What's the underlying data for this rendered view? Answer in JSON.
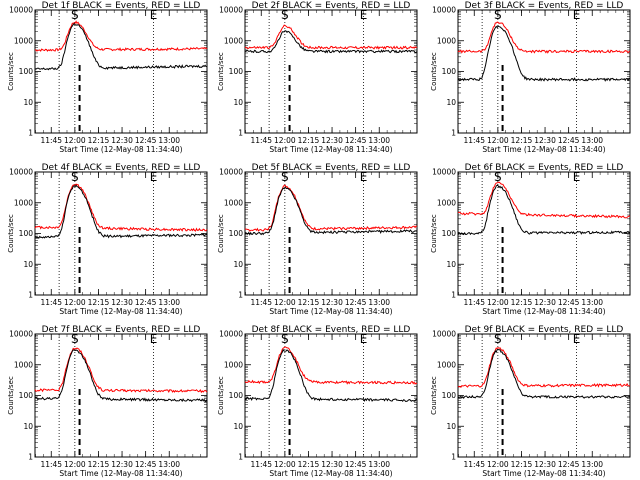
{
  "chart_data": [
    {
      "type": "line",
      "title": "Det 1f BLACK = Events, RED = LLD",
      "xlabel": "Start Time (12-May-08 11:34:40)",
      "ylabel": "Counts/sec",
      "yscale": "log",
      "ylim": [
        1,
        10000
      ],
      "xlim": [
        "11:34:40",
        "13:24"
      ],
      "x_tick_labels": [
        "11:45",
        "12:00",
        "12:15",
        "12:30",
        "12:45",
        "13:00"
      ],
      "y_tick_labels": [
        "1",
        "10",
        "100",
        "1000",
        "10000"
      ],
      "markers": [
        {
          "label": "S",
          "time": "12:00"
        },
        {
          "label": "E",
          "time": "12:50"
        }
      ],
      "dotted_times": [
        "11:50",
        "12:00",
        "12:50"
      ],
      "dashed_times": [
        "12:03"
      ],
      "peak_time": "12:00",
      "series": [
        {
          "color": "#ff0000",
          "baseline": 500,
          "peak": 4000,
          "end": 550
        },
        {
          "color": "#000000",
          "baseline": 120,
          "peak": 3500,
          "end": 150
        }
      ]
    },
    {
      "type": "line",
      "title": "Det 2f BLACK = Events, RED = LLD",
      "xlabel": "Start Time (12-May-08 11:34:40)",
      "ylabel": "Counts/sec",
      "yscale": "log",
      "ylim": [
        1,
        10000
      ],
      "xlim": [
        "11:34:40",
        "13:24"
      ],
      "x_tick_labels": [
        "11:45",
        "12:00",
        "12:15",
        "12:30",
        "12:45",
        "13:00"
      ],
      "y_tick_labels": [
        "1",
        "10",
        "100",
        "1000",
        "10000"
      ],
      "markers": [
        {
          "label": "S",
          "time": "12:00"
        },
        {
          "label": "E",
          "time": "12:50"
        }
      ],
      "dotted_times": [
        "11:50",
        "12:00",
        "12:50"
      ],
      "dashed_times": [
        "12:03"
      ],
      "peak_time": "12:00",
      "series": [
        {
          "color": "#ff0000",
          "baseline": 600,
          "peak": 3000,
          "end": 600
        },
        {
          "color": "#000000",
          "baseline": 450,
          "peak": 2000,
          "end": 450
        }
      ]
    },
    {
      "type": "line",
      "title": "Det 3f BLACK = Events, RED = LLD",
      "xlabel": "Start Time (12-May-08 11:34:40)",
      "ylabel": "Counts/sec",
      "yscale": "log",
      "ylim": [
        1,
        10000
      ],
      "xlim": [
        "11:34:40",
        "13:24"
      ],
      "x_tick_labels": [
        "11:45",
        "12:00",
        "12:15",
        "12:30",
        "12:45",
        "13:00"
      ],
      "y_tick_labels": [
        "1",
        "10",
        "100",
        "1000",
        "10000"
      ],
      "markers": [
        {
          "label": "S",
          "time": "12:00"
        },
        {
          "label": "E",
          "time": "12:50"
        }
      ],
      "dotted_times": [
        "11:50",
        "12:00",
        "12:50"
      ],
      "dashed_times": [
        "12:03"
      ],
      "peak_time": "12:00",
      "series": [
        {
          "color": "#ff0000",
          "baseline": 450,
          "peak": 4000,
          "end": 450
        },
        {
          "color": "#000000",
          "baseline": 55,
          "peak": 3000,
          "end": 55
        }
      ]
    },
    {
      "type": "line",
      "title": "Det 4f BLACK = Events, RED = LLD",
      "xlabel": "Start Time (12-May-08 11:34:40)",
      "ylabel": "Counts/sec",
      "yscale": "log",
      "ylim": [
        1,
        10000
      ],
      "xlim": [
        "11:34:40",
        "13:24"
      ],
      "x_tick_labels": [
        "11:45",
        "12:00",
        "12:15",
        "12:30",
        "12:45",
        "13:00"
      ],
      "y_tick_labels": [
        "1",
        "10",
        "100",
        "1000",
        "10000"
      ],
      "markers": [
        {
          "label": "S",
          "time": "12:00"
        },
        {
          "label": "E",
          "time": "12:50"
        }
      ],
      "dotted_times": [
        "11:50",
        "12:00",
        "12:50"
      ],
      "dashed_times": [
        "12:03"
      ],
      "peak_time": "12:00",
      "series": [
        {
          "color": "#ff0000",
          "baseline": 160,
          "peak": 4000,
          "end": 130
        },
        {
          "color": "#000000",
          "baseline": 75,
          "peak": 3500,
          "end": 90
        }
      ]
    },
    {
      "type": "line",
      "title": "Det 5f BLACK = Events, RED = LLD",
      "xlabel": "Start Time (12-May-08 11:34:40)",
      "ylabel": "Counts/sec",
      "yscale": "log",
      "ylim": [
        1,
        10000
      ],
      "xlim": [
        "11:34:40",
        "13:24"
      ],
      "x_tick_labels": [
        "11:45",
        "12:00",
        "12:15",
        "12:30",
        "12:45",
        "13:00"
      ],
      "y_tick_labels": [
        "1",
        "10",
        "100",
        "1000",
        "10000"
      ],
      "markers": [
        {
          "label": "S",
          "time": "12:00"
        },
        {
          "label": "E",
          "time": "12:50"
        }
      ],
      "dotted_times": [
        "11:50",
        "12:00",
        "12:50"
      ],
      "dashed_times": [
        "12:03"
      ],
      "peak_time": "12:00",
      "series": [
        {
          "color": "#ff0000",
          "baseline": 130,
          "peak": 3500,
          "end": 160
        },
        {
          "color": "#000000",
          "baseline": 100,
          "peak": 3000,
          "end": 120
        }
      ]
    },
    {
      "type": "line",
      "title": "Det 6f BLACK = Events, RED = LLD",
      "xlabel": "Start Time (12-May-08 11:34:40)",
      "ylabel": "Counts/sec",
      "yscale": "log",
      "ylim": [
        1,
        10000
      ],
      "xlim": [
        "11:34:40",
        "13:24"
      ],
      "x_tick_labels": [
        "11:45",
        "12:00",
        "12:15",
        "12:30",
        "12:45",
        "13:00"
      ],
      "y_tick_labels": [
        "1",
        "10",
        "100",
        "1000",
        "10000"
      ],
      "markers": [
        {
          "label": "S",
          "time": "12:00"
        },
        {
          "label": "E",
          "time": "12:50"
        }
      ],
      "dotted_times": [
        "11:50",
        "12:00",
        "12:50"
      ],
      "dashed_times": [
        "12:03"
      ],
      "peak_time": "12:00",
      "series": [
        {
          "color": "#ff0000",
          "baseline": 450,
          "peak": 4500,
          "end": 350
        },
        {
          "color": "#000000",
          "baseline": 100,
          "peak": 3500,
          "end": 110
        }
      ]
    },
    {
      "type": "line",
      "title": "Det 7f BLACK = Events, RED = LLD",
      "xlabel": "Start Time (12-May-08 11:34:40)",
      "ylabel": "Counts/sec",
      "yscale": "log",
      "ylim": [
        1,
        10000
      ],
      "xlim": [
        "11:34:40",
        "13:24"
      ],
      "x_tick_labels": [
        "11:45",
        "12:00",
        "12:15",
        "12:30",
        "12:45",
        "13:00"
      ],
      "y_tick_labels": [
        "1",
        "10",
        "100",
        "1000",
        "10000"
      ],
      "markers": [
        {
          "label": "S",
          "time": "12:00"
        },
        {
          "label": "E",
          "time": "12:50"
        }
      ],
      "dotted_times": [
        "11:50",
        "12:00",
        "12:50"
      ],
      "dashed_times": [
        "12:03"
      ],
      "peak_time": "12:00",
      "series": [
        {
          "color": "#ff0000",
          "baseline": 150,
          "peak": 3500,
          "end": 140
        },
        {
          "color": "#000000",
          "baseline": 80,
          "peak": 3000,
          "end": 70
        }
      ]
    },
    {
      "type": "line",
      "title": "Det 8f BLACK = Events, RED = LLD",
      "xlabel": "Start Time (12-May-08 11:34:40)",
      "ylabel": "Counts/sec",
      "yscale": "log",
      "ylim": [
        1,
        10000
      ],
      "xlim": [
        "11:34:40",
        "13:24"
      ],
      "x_tick_labels": [
        "11:45",
        "12:00",
        "12:15",
        "12:30",
        "12:45",
        "13:00"
      ],
      "y_tick_labels": [
        "1",
        "10",
        "100",
        "1000",
        "10000"
      ],
      "markers": [
        {
          "label": "S",
          "time": "12:00"
        },
        {
          "label": "E",
          "time": "12:50"
        }
      ],
      "dotted_times": [
        "11:50",
        "12:00",
        "12:50"
      ],
      "dashed_times": [
        "12:03"
      ],
      "peak_time": "12:00",
      "series": [
        {
          "color": "#ff0000",
          "baseline": 280,
          "peak": 3500,
          "end": 260
        },
        {
          "color": "#000000",
          "baseline": 80,
          "peak": 3000,
          "end": 70
        }
      ]
    },
    {
      "type": "line",
      "title": "Det 9f BLACK = Events, RED = LLD",
      "xlabel": "Start Time (12-May-08 11:34:40)",
      "ylabel": "Counts/sec",
      "yscale": "log",
      "ylim": [
        1,
        10000
      ],
      "xlim": [
        "11:34:40",
        "13:24"
      ],
      "x_tick_labels": [
        "11:45",
        "12:00",
        "12:15",
        "12:30",
        "12:45",
        "13:00"
      ],
      "y_tick_labels": [
        "1",
        "10",
        "100",
        "1000",
        "10000"
      ],
      "markers": [
        {
          "label": "S",
          "time": "12:00"
        },
        {
          "label": "E",
          "time": "12:50"
        }
      ],
      "dotted_times": [
        "11:50",
        "12:00",
        "12:50"
      ],
      "dashed_times": [
        "12:03"
      ],
      "peak_time": "12:00",
      "series": [
        {
          "color": "#ff0000",
          "baseline": 200,
          "peak": 3500,
          "end": 220
        },
        {
          "color": "#000000",
          "baseline": 90,
          "peak": 3000,
          "end": 90
        }
      ]
    }
  ]
}
